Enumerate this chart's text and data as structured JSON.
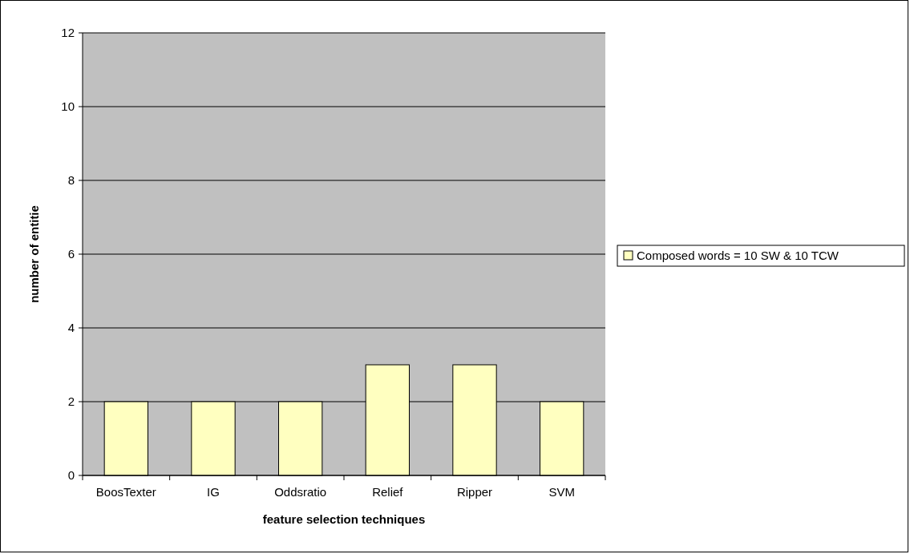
{
  "chart_data": {
    "type": "bar",
    "xlabel": "feature selection techniques",
    "ylabel": "number of entitie",
    "categories": [
      "BoosTexter",
      "IG",
      "Oddsratio",
      "Relief",
      "Ripper",
      "SVM"
    ],
    "series": [
      {
        "name": "Composed words = 10 SW & 10 TCW",
        "color": "#ffffc0",
        "values": [
          2,
          2,
          2,
          3,
          3,
          2
        ]
      }
    ],
    "ylim": [
      0,
      12
    ],
    "yticks": [
      0,
      2,
      4,
      6,
      8,
      10,
      12
    ],
    "grid": "y",
    "legend": "right"
  }
}
